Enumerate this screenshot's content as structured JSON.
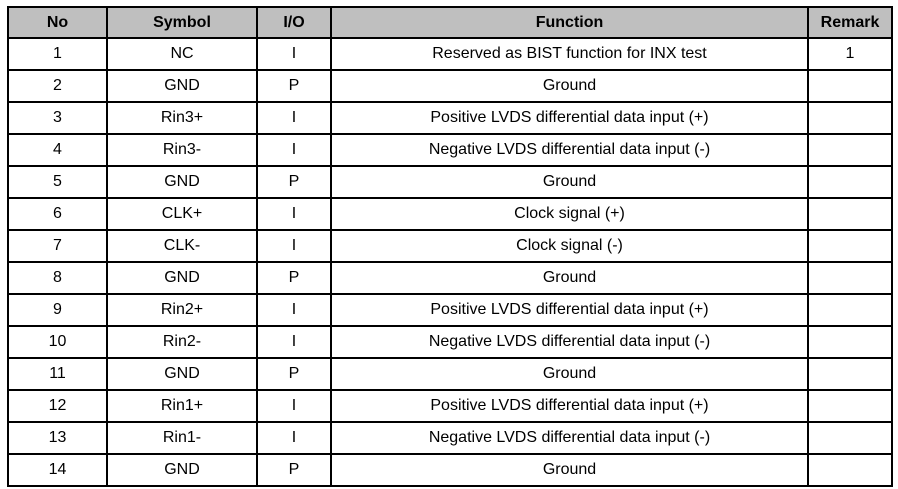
{
  "table": {
    "title": "pin-assignment-table",
    "header_bg": "#bfbfbf",
    "border_color": "#000000",
    "headers": {
      "no": "No",
      "symbol": "Symbol",
      "io": "I/O",
      "function": "Function",
      "remark": "Remark"
    },
    "rows": [
      {
        "no": "1",
        "symbol": "NC",
        "io": "I",
        "function": "Reserved as BIST function for INX test",
        "remark": "1"
      },
      {
        "no": "2",
        "symbol": "GND",
        "io": "P",
        "function": "Ground",
        "remark": ""
      },
      {
        "no": "3",
        "symbol": "Rin3+",
        "io": "I",
        "function": "Positive LVDS differential data input (+)",
        "remark": ""
      },
      {
        "no": "4",
        "symbol": "Rin3-",
        "io": "I",
        "function": "Negative LVDS differential data input (-)",
        "remark": ""
      },
      {
        "no": "5",
        "symbol": "GND",
        "io": "P",
        "function": "Ground",
        "remark": ""
      },
      {
        "no": "6",
        "symbol": "CLK+",
        "io": "I",
        "function": "Clock signal (+)",
        "remark": ""
      },
      {
        "no": "7",
        "symbol": "CLK-",
        "io": "I",
        "function": "Clock signal (-)",
        "remark": ""
      },
      {
        "no": "8",
        "symbol": "GND",
        "io": "P",
        "function": "Ground",
        "remark": ""
      },
      {
        "no": "9",
        "symbol": "Rin2+",
        "io": "I",
        "function": "Positive LVDS differential data input (+)",
        "remark": ""
      },
      {
        "no": "10",
        "symbol": "Rin2-",
        "io": "I",
        "function": "Negative LVDS differential data input (-)",
        "remark": ""
      },
      {
        "no": "11",
        "symbol": "GND",
        "io": "P",
        "function": "Ground",
        "remark": ""
      },
      {
        "no": "12",
        "symbol": "Rin1+",
        "io": "I",
        "function": "Positive LVDS differential data input (+)",
        "remark": ""
      },
      {
        "no": "13",
        "symbol": "Rin1-",
        "io": "I",
        "function": "Negative LVDS differential data input (-)",
        "remark": ""
      },
      {
        "no": "14",
        "symbol": "GND",
        "io": "P",
        "function": "Ground",
        "remark": ""
      }
    ]
  }
}
